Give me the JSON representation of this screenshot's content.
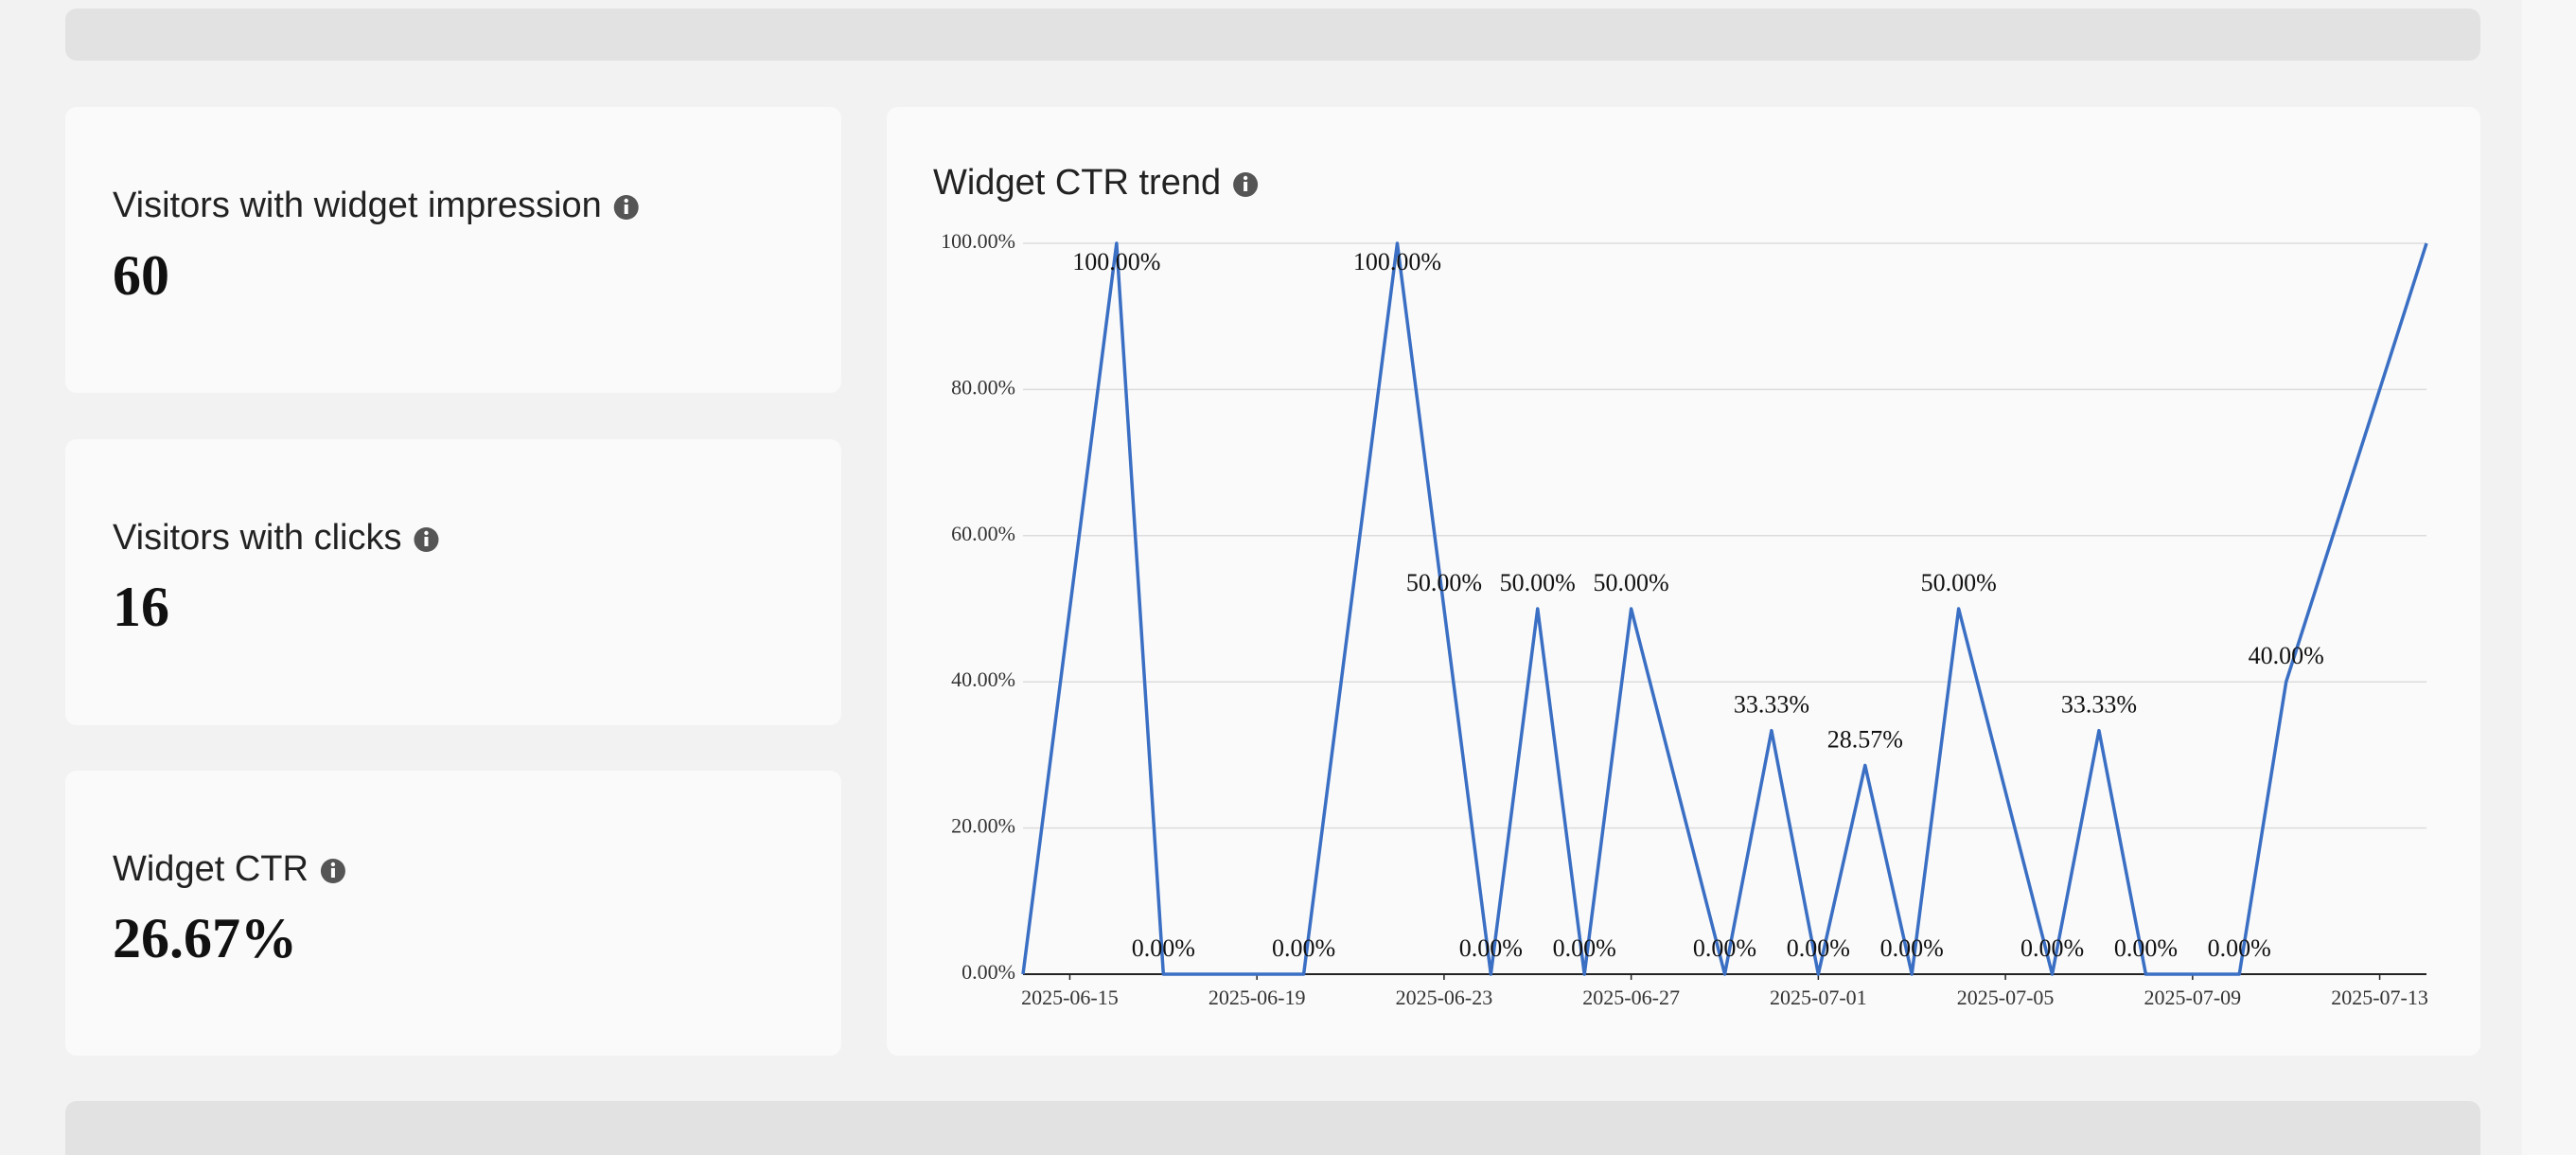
{
  "cards": [
    {
      "label": "Visitors with widget impression",
      "value": "60"
    },
    {
      "label": "Visitors with clicks",
      "value": "16"
    },
    {
      "label": "Widget CTR",
      "value": "26.67%"
    }
  ],
  "chart_data": {
    "type": "line",
    "title": "Widget CTR trend",
    "x": [
      "2025-06-14",
      "2025-06-16",
      "2025-06-17",
      "2025-06-20",
      "2025-06-22",
      "2025-06-23",
      "2025-06-24",
      "2025-06-25",
      "2025-06-26",
      "2025-06-27",
      "2025-06-29",
      "2025-06-30",
      "2025-07-01",
      "2025-07-02",
      "2025-07-03",
      "2025-07-04",
      "2025-07-06",
      "2025-07-07",
      "2025-07-08",
      "2025-07-10",
      "2025-07-11",
      "2025-07-14"
    ],
    "series": [
      {
        "color": "#3a6fc4",
        "values": [
          0,
          100,
          0,
          0,
          100,
          50,
          0,
          50,
          0,
          50,
          0,
          33.33,
          0,
          28.57,
          0,
          50,
          0,
          33.33,
          0,
          0,
          40,
          100
        ],
        "value_labels": [
          null,
          "100.00%",
          "0.00%",
          "0.00%",
          "100.00%",
          "50.00%",
          "0.00%",
          "50.00%",
          "0.00%",
          "50.00%",
          "0.00%",
          "33.33%",
          "0.00%",
          "28.57%",
          "0.00%",
          "50.00%",
          "0.00%",
          "33.33%",
          "0.00%",
          "0.00%",
          "40.00%",
          null
        ]
      }
    ],
    "xlim": [
      "2025-06-14",
      "2025-07-14"
    ],
    "xticks": [
      "2025-06-15",
      "2025-06-19",
      "2025-06-23",
      "2025-06-27",
      "2025-07-01",
      "2025-07-05",
      "2025-07-09",
      "2025-07-13"
    ],
    "ylim": [
      0,
      100
    ],
    "yticks": [
      {
        "value": 0,
        "label": "0.00%"
      },
      {
        "value": 20,
        "label": "20.00%"
      },
      {
        "value": 40,
        "label": "40.00%"
      },
      {
        "value": 60,
        "label": "60.00%"
      },
      {
        "value": 80,
        "label": "80.00%"
      },
      {
        "value": 100,
        "label": "100.00%"
      }
    ],
    "grid": true
  }
}
